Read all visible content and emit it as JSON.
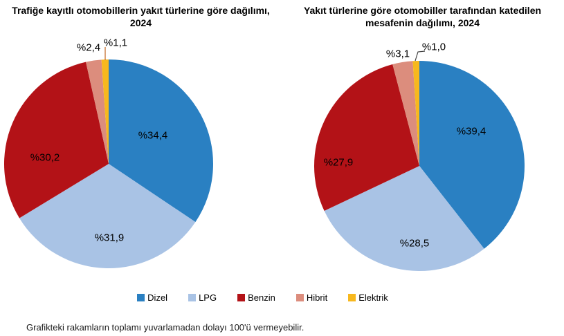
{
  "chart_data": [
    {
      "type": "pie",
      "title": "Trafiğe kayıtlı otomobillerin yakıt türlerine göre dağılımı, 2024",
      "categories": [
        "Dizel",
        "LPG",
        "Benzin",
        "Hibrit",
        "Elektrik"
      ],
      "values": [
        34.4,
        31.9,
        30.2,
        2.4,
        1.1
      ],
      "value_labels": [
        "%34,4",
        "%31,9",
        "%30,2",
        "%2,4",
        "%1,1"
      ],
      "start_angle_deg": 0,
      "direction": "clockwise",
      "small_slice_labels_outside": [
        "Hibrit",
        "Elektrik"
      ],
      "legend_position": "bottom-shared"
    },
    {
      "type": "pie",
      "title": "Yakıt türlerine göre otomobiller tarafından katedilen mesafenin dağılımı, 2024",
      "categories": [
        "Dizel",
        "LPG",
        "Benzin",
        "Hibrit",
        "Elektrik"
      ],
      "values": [
        39.4,
        28.5,
        27.9,
        3.1,
        1.0
      ],
      "value_labels": [
        "%39,4",
        "%28,5",
        "%27,9",
        "%3,1",
        "%1,0"
      ],
      "start_angle_deg": 0,
      "direction": "clockwise",
      "small_slice_labels_outside": [
        "Hibrit",
        "Elektrik"
      ],
      "legend_position": "bottom-shared"
    }
  ],
  "colors": {
    "Dizel": "#2A80C2",
    "LPG": "#A9C3E5",
    "Benzin": "#B31217",
    "Hibrit": "#DC8D7D",
    "Elektrik": "#F7B81E"
  },
  "legend": {
    "items": [
      "Dizel",
      "LPG",
      "Benzin",
      "Hibrit",
      "Elektrik"
    ]
  },
  "footnote": "Grafikteki rakamların toplamı yuvarlamadan dolayı 100'ü vermeyebilir."
}
